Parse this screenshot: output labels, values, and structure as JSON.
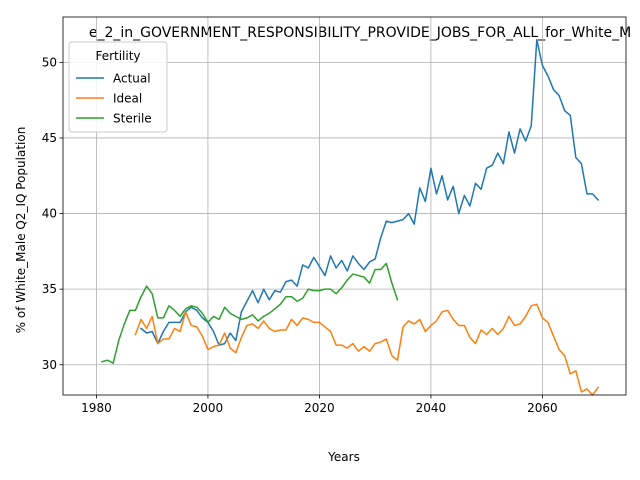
{
  "chart_data": {
    "type": "line",
    "title": "e_2_in_GOVERNMENT_RESPONSIBILITY_PROVIDE_JOBS_FOR_ALL_for_White_M",
    "xlabel": "Years",
    "ylabel": "% of White_Male Q2_IQ Population",
    "xlim": [
      1974,
      2075
    ],
    "ylim": [
      28,
      53
    ],
    "xticks": [
      1980,
      2000,
      2020,
      2040,
      2060
    ],
    "yticks": [
      30,
      35,
      40,
      45,
      50
    ],
    "grid": true,
    "legend": {
      "title": "Fertility",
      "placement": "top-left"
    },
    "series": [
      {
        "name": "Actual",
        "color": "#1f77b4",
        "points": [
          [
            1988,
            32.4
          ],
          [
            1989,
            32.1
          ],
          [
            1990,
            32.2
          ],
          [
            1991,
            31.4
          ],
          [
            1992,
            32.2
          ],
          [
            1993,
            32.8
          ],
          [
            1994,
            32.8
          ],
          [
            1995,
            32.8
          ],
          [
            1996,
            33.5
          ],
          [
            1997,
            33.8
          ],
          [
            1998,
            33.6
          ],
          [
            1999,
            33.1
          ],
          [
            2000,
            32.8
          ],
          [
            2001,
            32.2
          ],
          [
            2002,
            31.3
          ],
          [
            2003,
            31.4
          ],
          [
            2004,
            32.1
          ],
          [
            2005,
            31.6
          ],
          [
            2006,
            33.5
          ],
          [
            2007,
            34.2
          ],
          [
            2008,
            34.9
          ],
          [
            2009,
            34.1
          ],
          [
            2010,
            35.0
          ],
          [
            2011,
            34.3
          ],
          [
            2012,
            34.9
          ],
          [
            2013,
            34.8
          ],
          [
            2014,
            35.5
          ],
          [
            2015,
            35.6
          ],
          [
            2016,
            35.2
          ],
          [
            2017,
            36.6
          ],
          [
            2018,
            36.4
          ],
          [
            2019,
            37.1
          ],
          [
            2020,
            36.5
          ],
          [
            2021,
            35.9
          ],
          [
            2022,
            37.2
          ],
          [
            2023,
            36.4
          ],
          [
            2024,
            36.9
          ],
          [
            2025,
            36.2
          ],
          [
            2026,
            37.2
          ],
          [
            2027,
            36.7
          ],
          [
            2028,
            36.3
          ],
          [
            2029,
            36.8
          ],
          [
            2030,
            37.0
          ],
          [
            2031,
            38.4
          ],
          [
            2032,
            39.5
          ],
          [
            2033,
            39.4
          ],
          [
            2034,
            39.5
          ],
          [
            2035,
            39.6
          ],
          [
            2036,
            40.0
          ],
          [
            2037,
            39.3
          ],
          [
            2038,
            41.7
          ],
          [
            2039,
            40.8
          ],
          [
            2040,
            43.0
          ],
          [
            2041,
            41.3
          ],
          [
            2042,
            42.5
          ],
          [
            2043,
            40.9
          ],
          [
            2044,
            41.8
          ],
          [
            2045,
            40.0
          ],
          [
            2046,
            41.2
          ],
          [
            2047,
            40.5
          ],
          [
            2048,
            42.0
          ],
          [
            2049,
            41.6
          ],
          [
            2050,
            43.0
          ],
          [
            2051,
            43.2
          ],
          [
            2052,
            44.0
          ],
          [
            2053,
            43.3
          ],
          [
            2054,
            45.4
          ],
          [
            2055,
            44.0
          ],
          [
            2056,
            45.6
          ],
          [
            2057,
            44.8
          ],
          [
            2058,
            45.8
          ],
          [
            2059,
            51.5
          ],
          [
            2060,
            49.8
          ],
          [
            2061,
            49.1
          ],
          [
            2062,
            48.2
          ],
          [
            2063,
            47.8
          ],
          [
            2064,
            46.8
          ],
          [
            2065,
            46.5
          ],
          [
            2066,
            43.7
          ],
          [
            2067,
            43.3
          ],
          [
            2068,
            41.3
          ],
          [
            2069,
            41.3
          ],
          [
            2070,
            40.9
          ]
        ]
      },
      {
        "name": "Ideal",
        "color": "#ff7f0e",
        "points": [
          [
            1987,
            32.0
          ],
          [
            1988,
            33.0
          ],
          [
            1989,
            32.4
          ],
          [
            1990,
            33.2
          ],
          [
            1991,
            31.4
          ],
          [
            1992,
            31.7
          ],
          [
            1993,
            31.7
          ],
          [
            1994,
            32.4
          ],
          [
            1995,
            32.2
          ],
          [
            1996,
            33.5
          ],
          [
            1997,
            32.6
          ],
          [
            1998,
            32.5
          ],
          [
            1999,
            31.9
          ],
          [
            2000,
            31.0
          ],
          [
            2001,
            31.2
          ],
          [
            2002,
            31.3
          ],
          [
            2003,
            32.1
          ],
          [
            2004,
            31.1
          ],
          [
            2005,
            30.8
          ],
          [
            2006,
            31.8
          ],
          [
            2007,
            32.6
          ],
          [
            2008,
            32.7
          ],
          [
            2009,
            32.4
          ],
          [
            2010,
            32.9
          ],
          [
            2011,
            32.4
          ],
          [
            2012,
            32.2
          ],
          [
            2013,
            32.3
          ],
          [
            2014,
            32.3
          ],
          [
            2015,
            33.0
          ],
          [
            2016,
            32.6
          ],
          [
            2017,
            33.1
          ],
          [
            2018,
            33.0
          ],
          [
            2019,
            32.8
          ],
          [
            2020,
            32.8
          ],
          [
            2021,
            32.5
          ],
          [
            2022,
            32.2
          ],
          [
            2023,
            31.3
          ],
          [
            2024,
            31.3
          ],
          [
            2025,
            31.1
          ],
          [
            2026,
            31.4
          ],
          [
            2027,
            30.9
          ],
          [
            2028,
            31.2
          ],
          [
            2029,
            30.9
          ],
          [
            2030,
            31.4
          ],
          [
            2031,
            31.5
          ],
          [
            2032,
            31.7
          ],
          [
            2033,
            30.6
          ],
          [
            2034,
            30.3
          ],
          [
            2035,
            32.5
          ],
          [
            2036,
            32.9
          ],
          [
            2037,
            32.7
          ],
          [
            2038,
            33.0
          ],
          [
            2039,
            32.2
          ],
          [
            2040,
            32.6
          ],
          [
            2041,
            32.9
          ],
          [
            2042,
            33.5
          ],
          [
            2043,
            33.6
          ],
          [
            2044,
            33.0
          ],
          [
            2045,
            32.6
          ],
          [
            2046,
            32.6
          ],
          [
            2047,
            31.8
          ],
          [
            2048,
            31.4
          ],
          [
            2049,
            32.3
          ],
          [
            2050,
            32.0
          ],
          [
            2051,
            32.4
          ],
          [
            2052,
            32.0
          ],
          [
            2053,
            32.4
          ],
          [
            2054,
            33.2
          ],
          [
            2055,
            32.6
          ],
          [
            2056,
            32.7
          ],
          [
            2057,
            33.2
          ],
          [
            2058,
            33.9
          ],
          [
            2059,
            34.0
          ],
          [
            2060,
            33.1
          ],
          [
            2061,
            32.8
          ],
          [
            2062,
            31.9
          ],
          [
            2063,
            31.0
          ],
          [
            2064,
            30.6
          ],
          [
            2065,
            29.4
          ],
          [
            2066,
            29.6
          ],
          [
            2067,
            28.2
          ],
          [
            2068,
            28.4
          ],
          [
            2069,
            28.0
          ],
          [
            2070,
            28.5
          ]
        ]
      },
      {
        "name": "Sterile",
        "color": "#2ca02c",
        "points": [
          [
            1981,
            30.2
          ],
          [
            1982,
            30.3
          ],
          [
            1983,
            30.1
          ],
          [
            1984,
            31.6
          ],
          [
            1985,
            32.7
          ],
          [
            1986,
            33.6
          ],
          [
            1987,
            33.6
          ],
          [
            1988,
            34.5
          ],
          [
            1989,
            35.2
          ],
          [
            1990,
            34.7
          ],
          [
            1991,
            33.1
          ],
          [
            1992,
            33.1
          ],
          [
            1993,
            33.9
          ],
          [
            1994,
            33.6
          ],
          [
            1995,
            33.2
          ],
          [
            1996,
            33.7
          ],
          [
            1997,
            33.9
          ],
          [
            1998,
            33.8
          ],
          [
            1999,
            33.4
          ],
          [
            2000,
            32.8
          ],
          [
            2001,
            33.2
          ],
          [
            2002,
            33.0
          ],
          [
            2003,
            33.8
          ],
          [
            2004,
            33.4
          ],
          [
            2005,
            33.2
          ],
          [
            2006,
            33.0
          ],
          [
            2007,
            33.1
          ],
          [
            2008,
            33.3
          ],
          [
            2009,
            32.9
          ],
          [
            2010,
            33.2
          ],
          [
            2011,
            33.4
          ],
          [
            2012,
            33.7
          ],
          [
            2013,
            34.0
          ],
          [
            2014,
            34.5
          ],
          [
            2015,
            34.5
          ],
          [
            2016,
            34.2
          ],
          [
            2017,
            34.4
          ],
          [
            2018,
            35.0
          ],
          [
            2019,
            34.9
          ],
          [
            2020,
            34.9
          ],
          [
            2021,
            35.0
          ],
          [
            2022,
            35.0
          ],
          [
            2023,
            34.7
          ],
          [
            2024,
            35.1
          ],
          [
            2025,
            35.6
          ],
          [
            2026,
            36.0
          ],
          [
            2027,
            35.9
          ],
          [
            2028,
            35.8
          ],
          [
            2029,
            35.4
          ],
          [
            2030,
            36.3
          ],
          [
            2031,
            36.3
          ],
          [
            2032,
            36.7
          ],
          [
            2033,
            35.4
          ],
          [
            2034,
            34.3
          ]
        ]
      }
    ]
  }
}
